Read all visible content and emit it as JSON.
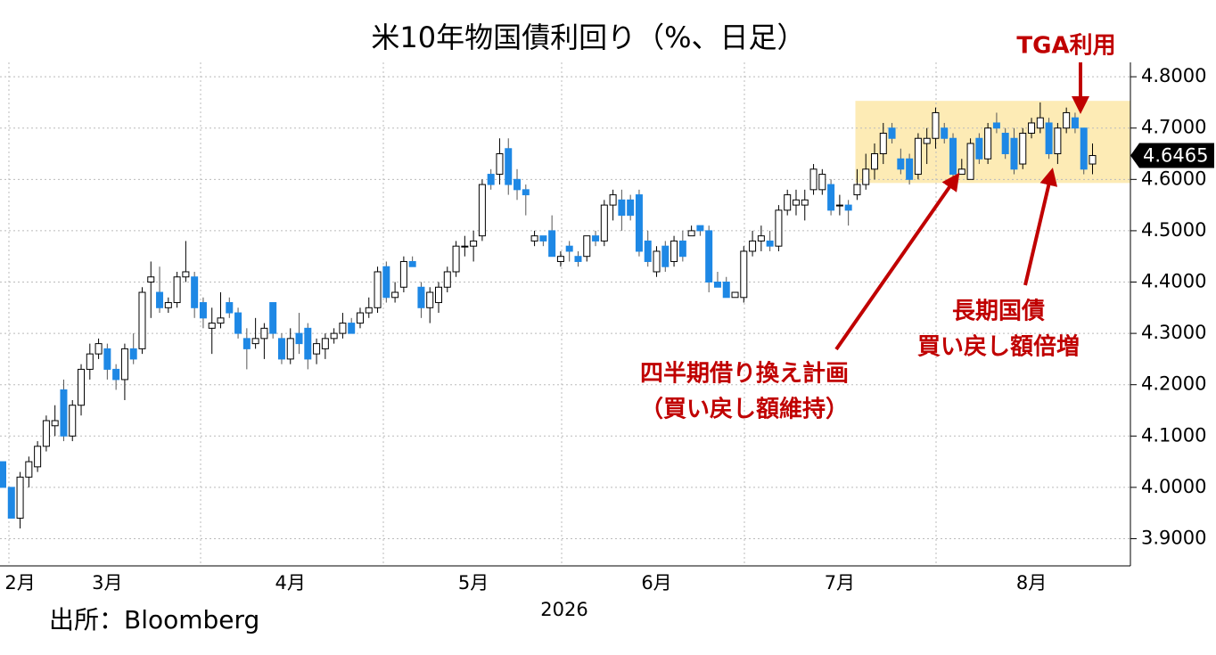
{
  "chart_data": {
    "type": "candlestick",
    "title": "米10年物国債利回り（%、日足）",
    "xlabel": "2026",
    "source": "出所：Bloomberg",
    "categories": [
      null,
      null,
      "2月",
      null,
      null,
      null,
      null,
      null,
      null,
      null,
      null,
      null,
      "3月",
      null,
      null,
      null,
      null,
      null,
      null,
      null,
      null,
      null,
      null,
      null,
      null,
      null,
      null,
      null,
      null,
      null,
      null,
      null,
      null,
      "4月",
      null,
      null,
      null,
      null,
      null,
      null,
      null,
      null,
      null,
      null,
      null,
      null,
      null,
      null,
      null,
      null,
      null,
      null,
      null,
      null,
      "5月",
      null,
      null,
      null,
      null,
      null,
      null,
      null,
      null,
      null,
      null,
      null,
      null,
      null,
      null,
      null,
      null,
      null,
      null,
      null,
      null,
      "6月",
      null,
      null,
      null,
      null,
      null,
      null,
      null,
      null,
      null,
      null,
      null,
      null,
      null,
      null,
      null,
      null,
      null,
      null,
      null,
      null,
      "7月",
      null,
      null,
      null,
      null,
      null,
      null,
      null,
      null,
      null,
      null,
      null,
      null,
      null,
      null,
      null,
      null,
      null,
      null,
      null,
      null,
      null,
      "8月",
      null,
      null,
      null,
      null,
      null,
      null,
      null
    ],
    "open": [
      4.05,
      4.0,
      3.94,
      4.02,
      4.04,
      4.08,
      4.12,
      4.19,
      4.1,
      4.16,
      4.23,
      4.26,
      4.27,
      4.23,
      4.21,
      4.27,
      4.27,
      4.4,
      4.38,
      4.35,
      4.36,
      4.41,
      4.41,
      4.36,
      4.31,
      4.32,
      4.36,
      4.34,
      4.29,
      4.28,
      4.29,
      4.36,
      4.29,
      4.25,
      4.3,
      4.31,
      4.26,
      4.27,
      4.29,
      4.3,
      4.32,
      4.32,
      4.34,
      4.35,
      4.43,
      4.37,
      4.39,
      4.44,
      4.39,
      4.35,
      4.36,
      4.39,
      4.42,
      4.47,
      4.47,
      4.49,
      4.61,
      4.61,
      4.66,
      4.6,
      4.58,
      4.48,
      4.49,
      4.5,
      4.44,
      4.47,
      4.45,
      4.45,
      4.49,
      4.48,
      4.55,
      4.56,
      4.56,
      4.57,
      4.48,
      4.42,
      4.47,
      4.44,
      4.48,
      4.49,
      4.51,
      4.5,
      4.4,
      4.4,
      4.37,
      4.37,
      4.46,
      4.48,
      4.48,
      4.47,
      4.54,
      4.55,
      4.55,
      4.58,
      4.58,
      4.59,
      4.55,
      4.55,
      4.57,
      4.59,
      4.62,
      4.65,
      4.7,
      4.64,
      4.64,
      4.61,
      4.67,
      4.68,
      4.7,
      4.68,
      4.61,
      4.6,
      4.68,
      4.64,
      4.71,
      4.69,
      4.68,
      4.63,
      4.69,
      4.7,
      4.71,
      4.65,
      4.7,
      4.72,
      4.7,
      4.63
    ],
    "high": [
      4.05,
      4.0,
      4.03,
      4.06,
      4.09,
      4.14,
      4.16,
      4.21,
      4.17,
      4.24,
      4.28,
      4.29,
      4.28,
      4.24,
      4.28,
      4.3,
      4.39,
      4.44,
      4.43,
      4.37,
      4.42,
      4.48,
      4.42,
      4.37,
      4.35,
      4.38,
      4.37,
      4.35,
      4.31,
      4.33,
      4.32,
      4.36,
      4.3,
      4.31,
      4.34,
      4.32,
      4.29,
      4.3,
      4.31,
      4.34,
      4.33,
      4.35,
      4.37,
      4.43,
      4.44,
      4.4,
      4.45,
      4.45,
      4.4,
      4.39,
      4.4,
      4.43,
      4.48,
      4.49,
      4.5,
      4.6,
      4.62,
      4.68,
      4.68,
      4.62,
      4.59,
      4.5,
      4.49,
      4.53,
      4.46,
      4.48,
      4.46,
      4.49,
      4.5,
      4.56,
      4.58,
      4.58,
      4.57,
      4.58,
      4.5,
      4.47,
      4.48,
      4.49,
      4.5,
      4.51,
      4.51,
      4.51,
      4.42,
      4.41,
      4.38,
      4.47,
      4.5,
      4.51,
      4.5,
      4.55,
      4.58,
      4.58,
      4.58,
      4.63,
      4.62,
      4.6,
      4.57,
      4.56,
      4.62,
      4.65,
      4.67,
      4.71,
      4.71,
      4.66,
      4.65,
      4.69,
      4.7,
      4.74,
      4.71,
      4.69,
      4.64,
      4.68,
      4.69,
      4.71,
      4.73,
      4.7,
      4.7,
      4.7,
      4.72,
      4.75,
      4.72,
      4.71,
      4.74,
      4.73,
      4.7,
      4.67
    ],
    "low": [
      4.0,
      3.94,
      3.92,
      4.0,
      4.03,
      4.07,
      4.1,
      4.09,
      4.09,
      4.14,
      4.21,
      4.25,
      4.21,
      4.19,
      4.17,
      4.24,
      4.26,
      4.33,
      4.34,
      4.34,
      4.35,
      4.4,
      4.33,
      4.31,
      4.26,
      4.31,
      4.33,
      4.29,
      4.23,
      4.27,
      4.25,
      4.29,
      4.24,
      4.24,
      4.26,
      4.23,
      4.24,
      4.25,
      4.28,
      4.29,
      4.3,
      4.31,
      4.33,
      4.34,
      4.36,
      4.36,
      4.38,
      4.43,
      4.33,
      4.32,
      4.34,
      4.38,
      4.41,
      4.45,
      4.44,
      4.48,
      4.58,
      4.59,
      4.57,
      4.56,
      4.53,
      4.47,
      4.47,
      4.45,
      4.43,
      4.44,
      4.43,
      4.44,
      4.47,
      4.47,
      4.52,
      4.5,
      4.52,
      4.45,
      4.43,
      4.41,
      4.42,
      4.43,
      4.44,
      4.49,
      4.49,
      4.38,
      4.39,
      4.37,
      4.37,
      4.36,
      4.45,
      4.46,
      4.46,
      4.46,
      4.53,
      4.53,
      4.52,
      4.57,
      4.57,
      4.53,
      4.53,
      4.51,
      4.56,
      4.58,
      4.6,
      4.63,
      4.67,
      4.61,
      4.59,
      4.6,
      4.63,
      4.66,
      4.67,
      4.6,
      4.61,
      4.6,
      4.63,
      4.63,
      4.69,
      4.64,
      4.61,
      4.62,
      4.68,
      4.69,
      4.64,
      4.63,
      4.69,
      4.69,
      4.61,
      4.61
    ],
    "close": [
      4.0,
      3.94,
      4.02,
      4.05,
      4.08,
      4.13,
      4.13,
      4.1,
      4.16,
      4.23,
      4.26,
      4.28,
      4.23,
      4.21,
      4.27,
      4.25,
      4.38,
      4.41,
      4.35,
      4.36,
      4.41,
      4.42,
      4.35,
      4.33,
      4.32,
      4.33,
      4.34,
      4.3,
      4.27,
      4.29,
      4.31,
      4.3,
      4.25,
      4.29,
      4.28,
      4.25,
      4.28,
      4.29,
      4.3,
      4.32,
      4.3,
      4.34,
      4.35,
      4.42,
      4.37,
      4.38,
      4.44,
      4.43,
      4.35,
      4.38,
      4.39,
      4.42,
      4.47,
      4.47,
      4.48,
      4.59,
      4.59,
      4.65,
      4.59,
      4.58,
      4.57,
      4.49,
      4.48,
      4.45,
      4.45,
      4.46,
      4.44,
      4.49,
      4.48,
      4.55,
      4.57,
      4.53,
      4.53,
      4.46,
      4.44,
      4.46,
      4.43,
      4.48,
      4.45,
      4.5,
      4.5,
      4.4,
      4.39,
      4.37,
      4.38,
      4.46,
      4.48,
      4.49,
      4.47,
      4.54,
      4.57,
      4.56,
      4.56,
      4.62,
      4.61,
      4.54,
      4.55,
      4.54,
      4.59,
      4.62,
      4.65,
      4.69,
      4.68,
      4.62,
      4.6,
      4.68,
      4.68,
      4.73,
      4.68,
      4.61,
      4.62,
      4.67,
      4.64,
      4.7,
      4.7,
      4.65,
      4.62,
      4.69,
      4.71,
      4.72,
      4.65,
      4.7,
      4.73,
      4.7,
      4.62,
      4.6465
    ],
    "up_color": "#ffffff",
    "down_color": "#1e88e5",
    "ylim": [
      3.847,
      4.828
    ],
    "yticks": [
      {
        "value": 3.9,
        "label": "3.9000"
      },
      {
        "value": 4.0,
        "label": "4.0000"
      },
      {
        "value": 4.1,
        "label": "4.1000"
      },
      {
        "value": 4.2,
        "label": "4.2000"
      },
      {
        "value": 4.3,
        "label": "4.3000"
      },
      {
        "value": 4.4,
        "label": "4.4000"
      },
      {
        "value": 4.5,
        "label": "4.5000"
      },
      {
        "value": 4.6,
        "label": "4.6000"
      },
      {
        "value": 4.7,
        "label": "4.7000"
      },
      {
        "value": 4.8,
        "label": "4.8000"
      }
    ],
    "grid": true,
    "highlight": {
      "x": [
        97.8,
        129.8
      ],
      "y": [
        4.593,
        4.753
      ],
      "color": "#fde7a8"
    },
    "annotations": {
      "tga": "TGA利用",
      "buyback": [
        "長期国債",
        "買い戻し額倍増"
      ],
      "refunding": [
        "四半期借り換え計画",
        "（買い戻し額維持）"
      ]
    }
  }
}
